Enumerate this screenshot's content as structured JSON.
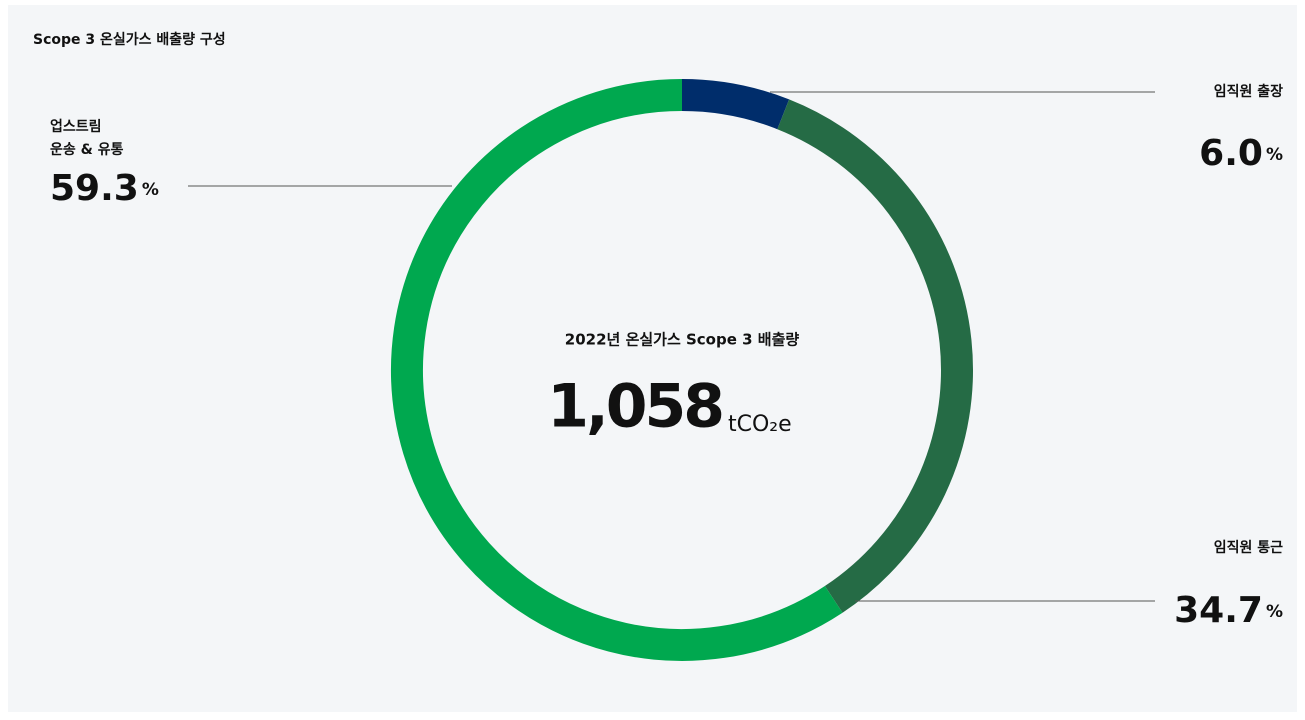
{
  "chart_data": {
    "type": "donut",
    "title": "Scope 3 온실가스 배출량 구성",
    "center_label": "2022년 온실가스 Scope 3 배출량",
    "center_value": "1,058",
    "center_unit": "tCO₂e",
    "categories": [
      [
        "임직원 출장"
      ],
      [
        "임직원 통근"
      ],
      [
        "업스트림",
        "운송 & 유통"
      ]
    ],
    "values": [
      6.0,
      34.7,
      59.3
    ],
    "value_labels": [
      "6.0",
      "34.7",
      "59.3"
    ],
    "unit": "%",
    "colors": [
      "#002d6b",
      "#256b45",
      "#00a84f"
    ]
  }
}
